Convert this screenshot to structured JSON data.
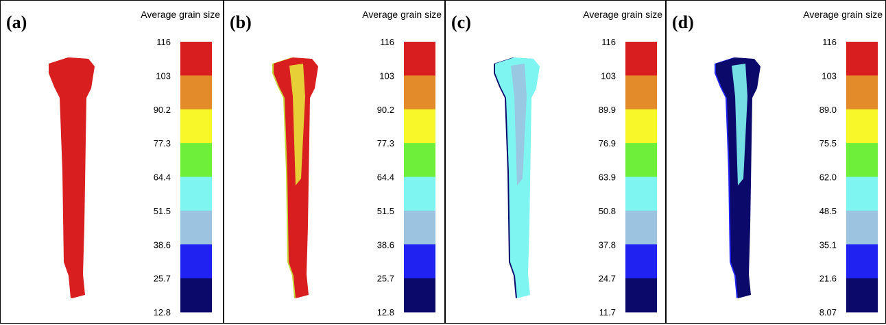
{
  "panels": [
    {
      "label": "(a)",
      "title": "Average grain size",
      "ticks": [
        "116",
        "103",
        "90.2",
        "77.3",
        "64.4",
        "51.5",
        "38.6",
        "25.7",
        "12.8"
      ]
    },
    {
      "label": "(b)",
      "title": "Average grain size",
      "ticks": [
        "116",
        "103",
        "90.2",
        "77.3",
        "64.4",
        "51.5",
        "38.6",
        "25.7",
        "12.8"
      ]
    },
    {
      "label": "(c)",
      "title": "Average grain size",
      "ticks": [
        "116",
        "103",
        "89.9",
        "76.9",
        "63.9",
        "50.8",
        "37.8",
        "24.7",
        "11.7"
      ]
    },
    {
      "label": "(d)",
      "title": "Average grain size",
      "ticks": [
        "116",
        "103",
        "89.0",
        "75.5",
        "62.0",
        "48.5",
        "35.1",
        "21.6",
        "8.07"
      ]
    }
  ]
}
